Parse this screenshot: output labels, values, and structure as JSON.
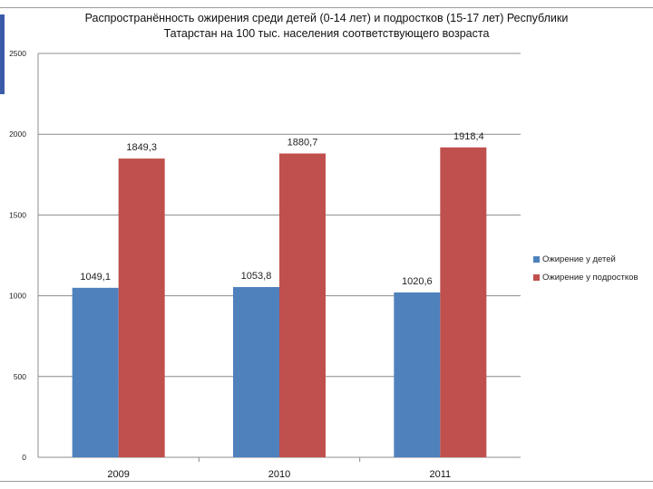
{
  "chart_data": {
    "type": "bar",
    "title_line1": "Распространённость ожирения среди детей (0-14 лет) и подростков (15-17 лет) Республики",
    "title_line2": "Татарстан на 100 тыс. населения соответствующего возраста",
    "categories": [
      "2009",
      "2010",
      "2011"
    ],
    "series": [
      {
        "name": "Ожирение у детей",
        "color": "#4f81bd",
        "values": [
          1049.1,
          1053.8,
          1020.6
        ],
        "labels": [
          "1049,1",
          "1053,8",
          "1020,6"
        ]
      },
      {
        "name": "Ожирение у подростков",
        "color": "#c0504d",
        "values": [
          1849.3,
          1880.7,
          1918.4
        ],
        "labels": [
          "1849,3",
          "1880,7",
          "1918,4"
        ]
      }
    ],
    "ylim": [
      0,
      2500
    ],
    "yticks": [
      0,
      500,
      1000,
      1500,
      2000,
      2500
    ],
    "ytick_labels": [
      "0",
      "500",
      "1000",
      "1500",
      "2000",
      "2500"
    ],
    "grid": true,
    "legend_position": "right"
  }
}
